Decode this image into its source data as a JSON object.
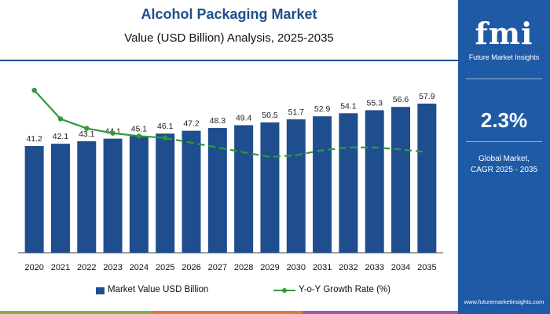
{
  "title": "Alcohol Packaging Market",
  "subtitle": "Value (USD Billion) Analysis, 2025-2035",
  "sidebar": {
    "logo_text": "fmi",
    "logo_subtext": "Future Market Insights",
    "cagr_value": "2.3%",
    "cagr_label_line1": "Global Market,",
    "cagr_label_line2": "CAGR 2025 - 2035",
    "website": "www.futuremarketinsights.com",
    "background_color": "#1f5aa6"
  },
  "legend": {
    "bar_label": "Market Value USD Billion",
    "line_label": "Y-o-Y Growth Rate (%)"
  },
  "colors": {
    "bar": "#1f4e8f",
    "line": "#2e9a3a",
    "title": "#1e4f8c"
  },
  "chart_data": {
    "type": "bar",
    "title": "Alcohol Packaging Market",
    "subtitle": "Value (USD Billion) Analysis, 2025-2035",
    "categories": [
      "2020",
      "2021",
      "2022",
      "2023",
      "2024",
      "2025",
      "2026",
      "2027",
      "2028",
      "2029",
      "2030",
      "2031",
      "2032",
      "2033",
      "2034",
      "2035"
    ],
    "series": [
      {
        "name": "Market Value USD Billion",
        "type": "bar",
        "values": [
          41.2,
          42.1,
          43.1,
          44.1,
          45.1,
          46.1,
          47.2,
          48.3,
          49.4,
          50.5,
          51.7,
          52.9,
          54.1,
          55.3,
          56.6,
          57.9
        ],
        "data_labels": [
          "41.2",
          "42.1",
          "43.1",
          "44.1",
          "45.1",
          "46.1",
          "47.2",
          "48.3",
          "49.4",
          "50.5",
          "51.7",
          "52.9",
          "54.1",
          "55.3",
          "56.6",
          "57.9"
        ]
      },
      {
        "name": "Y-o-Y Growth Rate (%)",
        "type": "line",
        "values": [
          2.6,
          2.3,
          2.2,
          2.15,
          2.12,
          2.1,
          2.05,
          2.0,
          1.95,
          1.9,
          1.92,
          1.97,
          2.0,
          2.0,
          1.98,
          1.95
        ]
      }
    ],
    "legend_position": "bottom-center",
    "grid": false
  }
}
